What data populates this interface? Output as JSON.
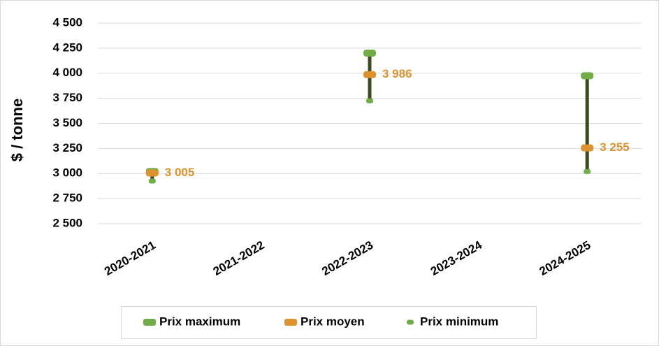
{
  "chart_data": {
    "type": "highlow",
    "y_label": "$ / tonne",
    "categories": [
      "2020-2021",
      "2021-2022",
      "2022-2023",
      "2023-2024",
      "2024-2025"
    ],
    "series": [
      {
        "name": "Prix maximum",
        "color": "#70ad47",
        "values": [
          3020,
          null,
          4200,
          null,
          3975
        ]
      },
      {
        "name": "Prix moyen",
        "color": "#dd9230",
        "values": [
          3005,
          null,
          3986,
          null,
          3255
        ],
        "value_labels": [
          "3 005",
          null,
          "3 986",
          null,
          "3 255"
        ]
      },
      {
        "name": "Prix minimum",
        "color": "#70ad47",
        "values": [
          2925,
          null,
          3725,
          null,
          3020
        ]
      }
    ],
    "range_color": "#3d4a1f",
    "ylim": [
      2500,
      4500
    ],
    "yticks": [
      {
        "value": 2500,
        "label": "2 500"
      },
      {
        "value": 2750,
        "label": "2 750"
      },
      {
        "value": 3000,
        "label": "3 000"
      },
      {
        "value": 3250,
        "label": "3 250"
      },
      {
        "value": 3500,
        "label": "3 500"
      },
      {
        "value": 3750,
        "label": "3 750"
      },
      {
        "value": 4000,
        "label": "4 000"
      },
      {
        "value": 4250,
        "label": "4 250"
      },
      {
        "value": 4500,
        "label": "4 500"
      }
    ],
    "grid": true,
    "legend": "bottom"
  }
}
